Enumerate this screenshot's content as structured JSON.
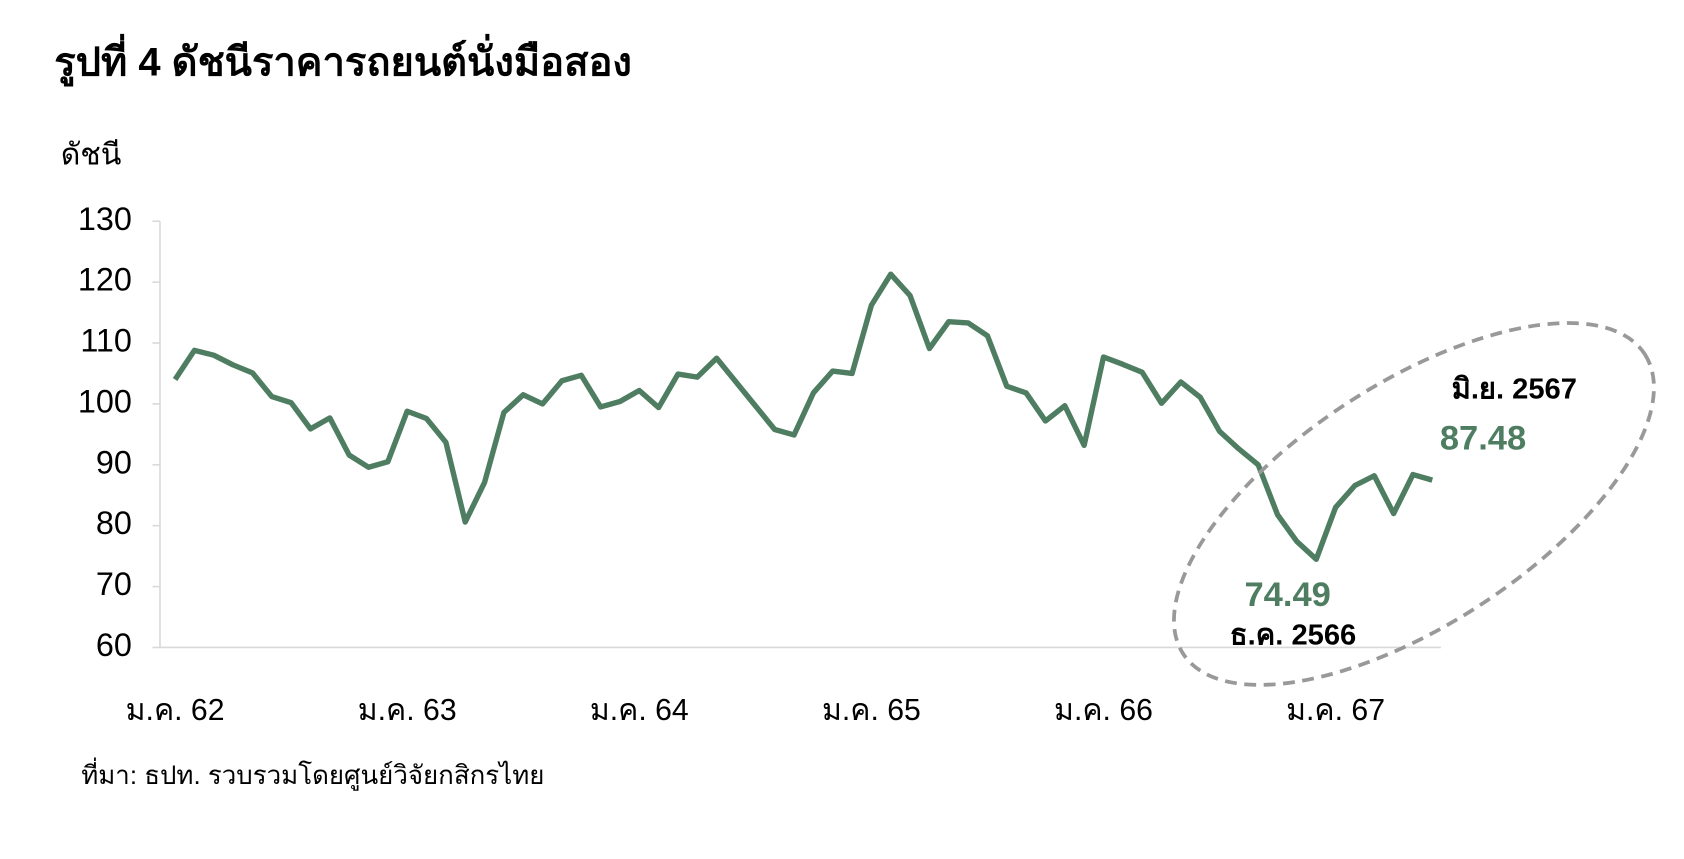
{
  "chart_data": {
    "type": "line",
    "title": "รูปที่ 4 ดัชนีราคารถยนต์นั่งมือสอง",
    "y_label": "ดัชนี",
    "source": "ที่มา: ธปท. รวบรวมโดยศูนย์วิจัยกสิกรไทย",
    "categories": [
      "ม.ค. 62",
      null,
      null,
      null,
      null,
      null,
      null,
      null,
      null,
      null,
      null,
      null,
      "ม.ค. 63",
      null,
      null,
      null,
      null,
      null,
      null,
      null,
      null,
      null,
      null,
      null,
      "ม.ค. 64",
      null,
      null,
      null,
      null,
      null,
      null,
      null,
      null,
      null,
      null,
      null,
      "ม.ค. 65",
      null,
      null,
      null,
      null,
      null,
      null,
      null,
      null,
      null,
      null,
      null,
      "ม.ค. 66",
      null,
      null,
      null,
      null,
      null,
      null,
      null,
      null,
      null,
      null,
      null,
      "ม.ค. 67",
      null,
      null,
      null,
      null,
      null
    ],
    "series": [
      {
        "name": "ดัชนี",
        "color": "#4e7d62",
        "values": [
          104.0,
          108.8,
          108.0,
          106.4,
          105.1,
          101.2,
          100.2,
          95.9,
          97.7,
          91.6,
          89.6,
          90.5,
          98.8,
          97.6,
          93.7,
          80.6,
          87.1,
          98.6,
          101.5,
          100.0,
          103.8,
          104.7,
          99.5,
          100.4,
          102.2,
          99.4,
          104.9,
          104.4,
          107.5,
          103.6,
          99.7,
          95.8,
          94.9,
          101.8,
          105.4,
          105.0,
          116.2,
          121.3,
          117.8,
          109.1,
          113.5,
          113.3,
          111.2,
          102.9,
          101.8,
          97.2,
          99.7,
          93.2,
          107.7,
          106.5,
          105.2,
          100.1,
          103.6,
          101.1,
          95.5,
          92.6,
          90.0,
          81.8,
          77.4,
          74.49,
          83.0,
          86.6,
          88.2,
          82.0,
          88.4,
          87.48
        ]
      }
    ],
    "annotations": [
      "ธ.ค. 2566",
      "มิ.ย. 2567"
    ],
    "ylim": [
      60,
      130
    ],
    "yticks": [
      60,
      70,
      80,
      90,
      100,
      110,
      120,
      130
    ],
    "grid": false
  }
}
